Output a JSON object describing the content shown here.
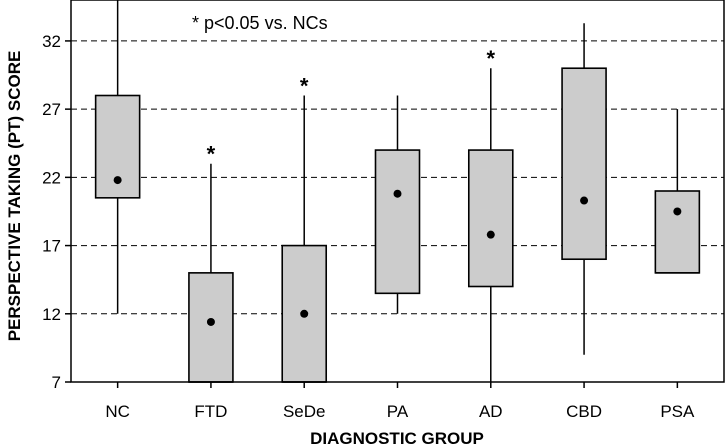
{
  "chart_data": {
    "type": "boxplot",
    "title": "",
    "legend_text": "* p<0.05 vs. NCs",
    "xlabel": "DIAGNOSTIC GROUP",
    "ylabel": "PERSPECTIVE TAKING (PT) SCORE",
    "ylim": [
      7,
      35
    ],
    "yticks": [
      7,
      12,
      17,
      22,
      27,
      32
    ],
    "grid": "horizontal dashed",
    "significance_marker": "*",
    "groups": [
      {
        "name": "NC",
        "min": 12,
        "q1": 20.5,
        "q3": 28,
        "max": 35,
        "mean": 21.8,
        "significant": false
      },
      {
        "name": "FTD",
        "min": 7,
        "q1": 7,
        "q3": 15,
        "max": 23,
        "mean": 11.4,
        "significant": true
      },
      {
        "name": "SeDe",
        "min": 7,
        "q1": 7,
        "q3": 17,
        "max": 28,
        "mean": 12,
        "significant": true
      },
      {
        "name": "PA",
        "min": 12,
        "q1": 13.5,
        "q3": 24,
        "max": 28,
        "mean": 20.8,
        "significant": false
      },
      {
        "name": "AD",
        "min": 7,
        "q1": 14,
        "q3": 24,
        "max": 30,
        "mean": 17.8,
        "significant": true
      },
      {
        "name": "CBD",
        "min": 9,
        "q1": 16,
        "q3": 30,
        "max": 33.3,
        "mean": 20.3,
        "significant": false
      },
      {
        "name": "PSA",
        "min": 15,
        "q1": 15,
        "q3": 21,
        "max": 27,
        "mean": 19.5,
        "significant": false
      }
    ]
  }
}
